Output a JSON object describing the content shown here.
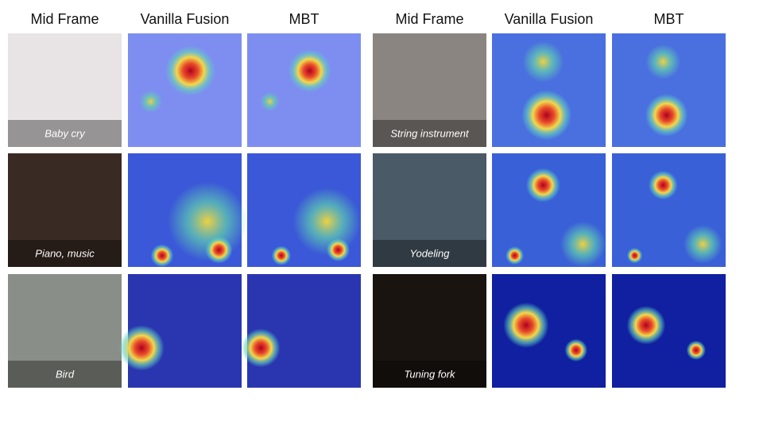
{
  "panels": [
    {
      "headers": [
        "Mid Frame",
        "Vanilla Fusion",
        "MBT"
      ],
      "rows": [
        {
          "label": "Baby cry"
        },
        {
          "label": "Piano, music"
        },
        {
          "label": "Bird"
        }
      ]
    },
    {
      "headers": [
        "Mid Frame",
        "Vanilla Fusion",
        "MBT"
      ],
      "rows": [
        {
          "label": "String instrument"
        },
        {
          "label": "Yodeling"
        },
        {
          "label": "Tuning fork"
        }
      ]
    }
  ]
}
